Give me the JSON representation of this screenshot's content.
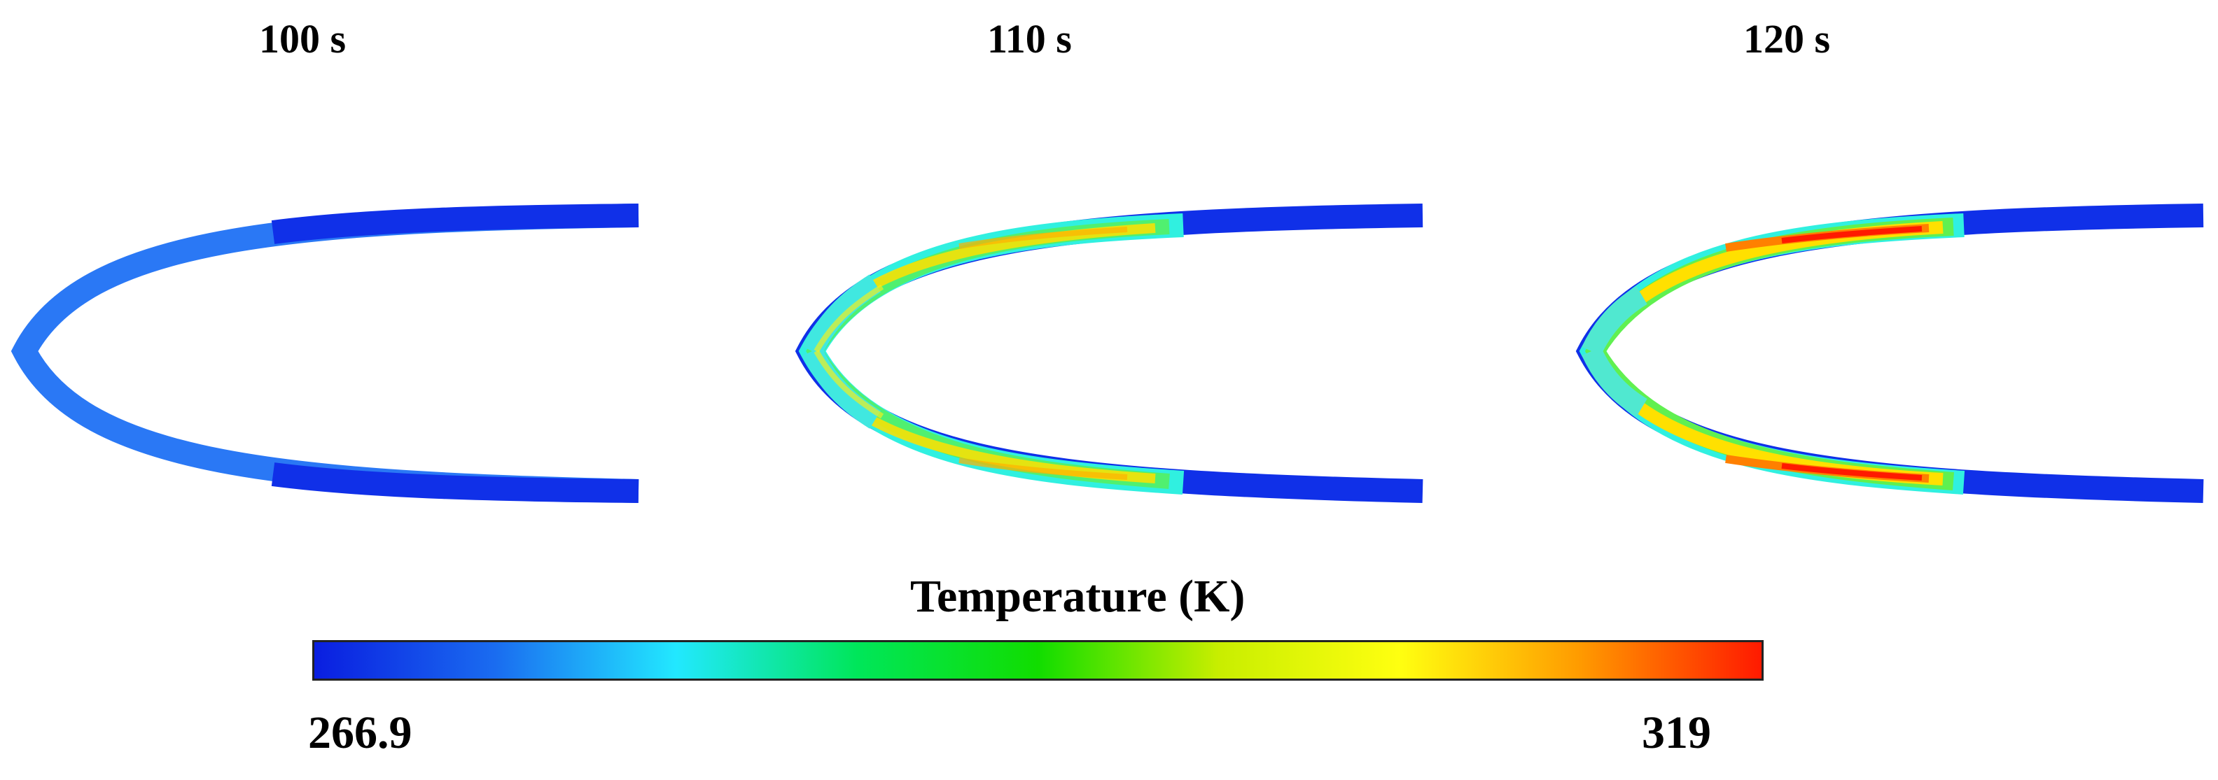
{
  "panels": [
    {
      "title": "100 s"
    },
    {
      "title": "110 s"
    },
    {
      "title": "120 s"
    }
  ],
  "colorbar": {
    "title": "Temperature (K)",
    "min_label": "266.9",
    "max_label": "319",
    "colors": [
      "#0a1ee0",
      "#1a6cf0",
      "#22e8ff",
      "#00e65a",
      "#11dd00",
      "#c8ee00",
      "#ffff10",
      "#ff9a00",
      "#ff1a00"
    ]
  }
}
